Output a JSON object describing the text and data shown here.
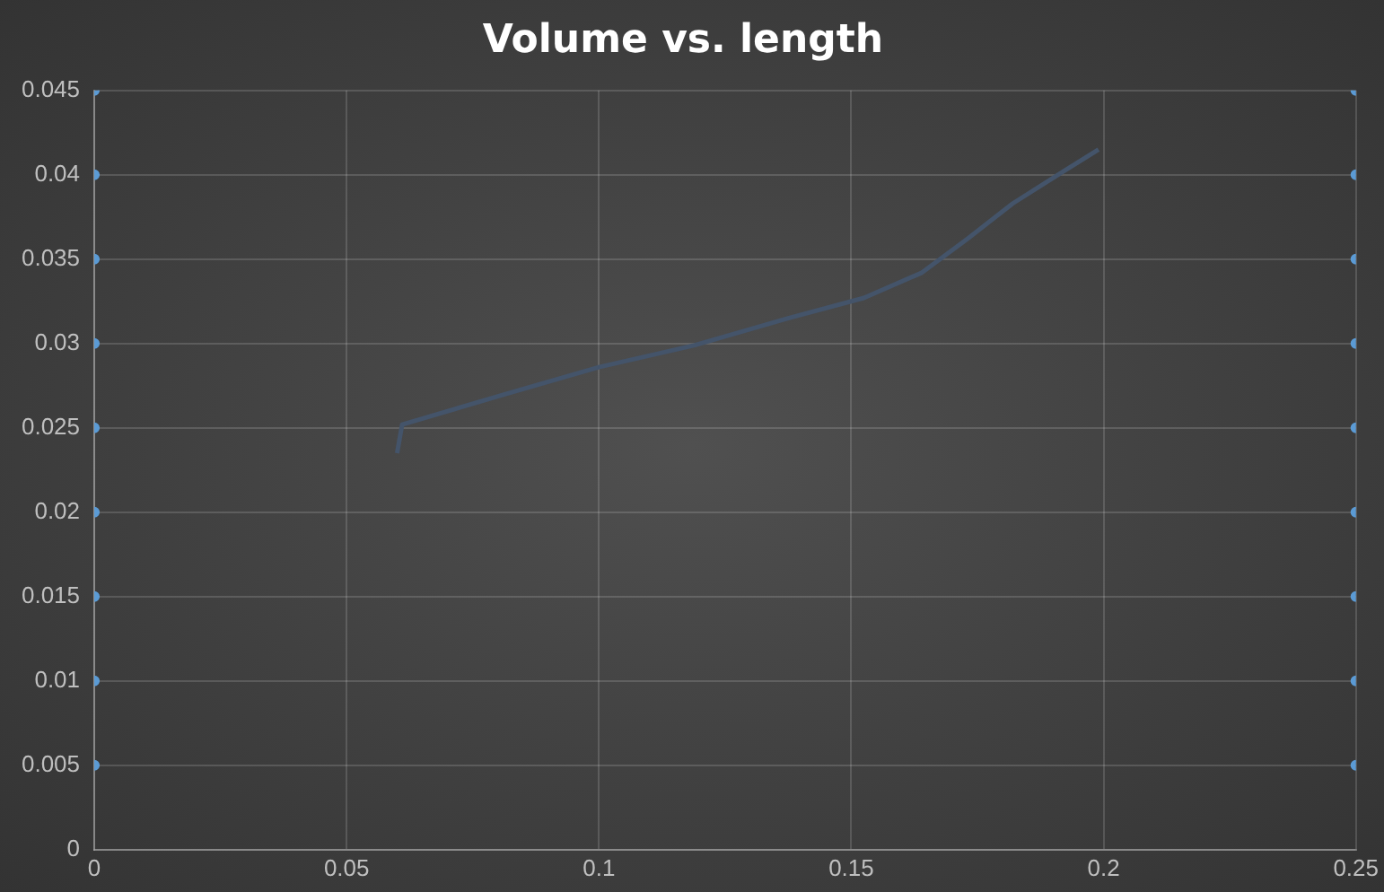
{
  "chart_data": {
    "type": "line",
    "title": "Volume vs. length",
    "xlim": [
      0,
      0.25
    ],
    "xticks": [
      0,
      0.05,
      0.1,
      0.15,
      0.2,
      0.25
    ],
    "ylim": [
      0,
      0.045
    ],
    "yticks": [
      0,
      0.005,
      0.01,
      0.015,
      0.02,
      0.025,
      0.03,
      0.035,
      0.04,
      0.045
    ],
    "grid": true,
    "legend": false,
    "series": [
      {
        "color": "#44546a",
        "marker": "none",
        "x": [
          0.06,
          0.061,
          0.0815,
          0.1,
          0.119,
          0.1375,
          0.1525,
          0.164,
          0.173,
          0.182,
          0.192,
          0.199
        ],
        "values": [
          0.0235,
          0.0252,
          0.027,
          0.0286,
          0.0299,
          0.0315,
          0.0327,
          0.0342,
          0.0362,
          0.0383,
          0.0402,
          0.0415
        ]
      },
      {
        "type": "scatter",
        "color": "#5b9bd5",
        "marker": "circle",
        "x": [
          0,
          0,
          0,
          0,
          0,
          0,
          0,
          0,
          0,
          0.25,
          0.25,
          0.25,
          0.25,
          0.25,
          0.25,
          0.25,
          0.25,
          0.25
        ],
        "values": [
          0.005,
          0.01,
          0.015,
          0.02,
          0.025,
          0.03,
          0.035,
          0.04,
          0.045,
          0.005,
          0.01,
          0.015,
          0.02,
          0.025,
          0.03,
          0.035,
          0.04,
          0.045
        ]
      }
    ]
  }
}
